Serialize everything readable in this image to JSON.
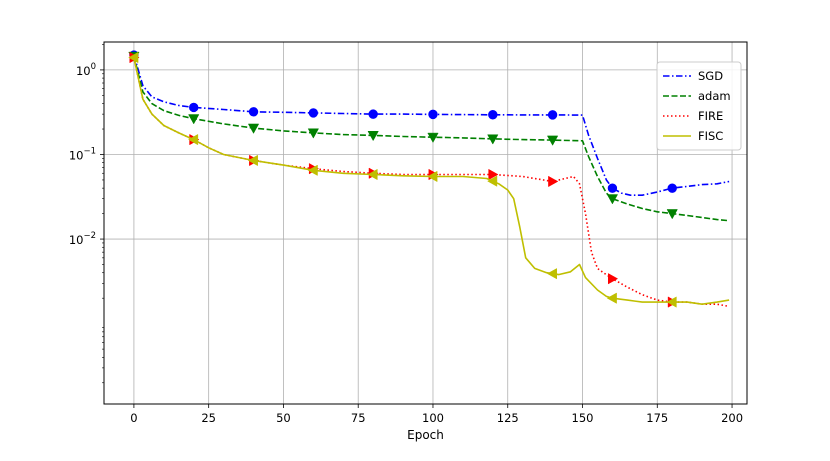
{
  "chart_data": {
    "type": "line",
    "xlabel": "Epoch",
    "ylabel": "",
    "title": "",
    "xlim": [
      -10,
      205
    ],
    "ylim_log10": [
      -3.95,
      0.33
    ],
    "yscale": "log",
    "grid": true,
    "legend_position": "top-right",
    "x_ticks": [
      0,
      25,
      50,
      75,
      100,
      125,
      150,
      175,
      200
    ],
    "y_ticks": [
      {
        "value": 1,
        "mantissa": "10",
        "exponent": "0"
      },
      {
        "value": 0.1,
        "mantissa": "10",
        "exponent": "−1"
      },
      {
        "value": 0.01,
        "mantissa": "10",
        "exponent": "−2"
      }
    ],
    "marker_every": 20,
    "series": [
      {
        "name": "SGD",
        "color": "#0000ff",
        "dash": "dashdot",
        "marker": "circle",
        "points": [
          [
            0,
            1.5
          ],
          [
            3,
            0.65
          ],
          [
            6,
            0.48
          ],
          [
            10,
            0.42
          ],
          [
            15,
            0.38
          ],
          [
            20,
            0.36
          ],
          [
            30,
            0.34
          ],
          [
            40,
            0.32
          ],
          [
            50,
            0.315
          ],
          [
            60,
            0.31
          ],
          [
            70,
            0.305
          ],
          [
            80,
            0.3
          ],
          [
            90,
            0.3
          ],
          [
            100,
            0.298
          ],
          [
            110,
            0.296
          ],
          [
            120,
            0.295
          ],
          [
            130,
            0.294
          ],
          [
            140,
            0.294
          ],
          [
            150,
            0.292
          ],
          [
            152,
            0.17
          ],
          [
            155,
            0.09
          ],
          [
            158,
            0.05
          ],
          [
            160,
            0.04
          ],
          [
            163,
            0.035
          ],
          [
            166,
            0.033
          ],
          [
            170,
            0.033
          ],
          [
            175,
            0.036
          ],
          [
            180,
            0.04
          ],
          [
            185,
            0.042
          ],
          [
            190,
            0.044
          ],
          [
            195,
            0.045
          ],
          [
            199,
            0.048
          ]
        ]
      },
      {
        "name": "adam",
        "color": "#008000",
        "dash": "dashed",
        "marker": "triangle-down",
        "points": [
          [
            0,
            1.45
          ],
          [
            3,
            0.55
          ],
          [
            6,
            0.4
          ],
          [
            10,
            0.33
          ],
          [
            15,
            0.29
          ],
          [
            20,
            0.265
          ],
          [
            30,
            0.23
          ],
          [
            40,
            0.205
          ],
          [
            50,
            0.19
          ],
          [
            60,
            0.18
          ],
          [
            70,
            0.172
          ],
          [
            80,
            0.168
          ],
          [
            90,
            0.163
          ],
          [
            100,
            0.16
          ],
          [
            110,
            0.157
          ],
          [
            120,
            0.153
          ],
          [
            130,
            0.15
          ],
          [
            140,
            0.148
          ],
          [
            150,
            0.145
          ],
          [
            152,
            0.095
          ],
          [
            155,
            0.055
          ],
          [
            158,
            0.035
          ],
          [
            160,
            0.03
          ],
          [
            165,
            0.026
          ],
          [
            170,
            0.023
          ],
          [
            175,
            0.021
          ],
          [
            180,
            0.02
          ],
          [
            185,
            0.019
          ],
          [
            190,
            0.018
          ],
          [
            195,
            0.017
          ],
          [
            199,
            0.0165
          ]
        ]
      },
      {
        "name": "FIRE",
        "color": "#ff0000",
        "dash": "dotted",
        "marker": "triangle-right",
        "points": [
          [
            0,
            1.4
          ],
          [
            3,
            0.45
          ],
          [
            6,
            0.3
          ],
          [
            10,
            0.22
          ],
          [
            15,
            0.18
          ],
          [
            20,
            0.15
          ],
          [
            25,
            0.12
          ],
          [
            30,
            0.1
          ],
          [
            40,
            0.085
          ],
          [
            50,
            0.075
          ],
          [
            60,
            0.068
          ],
          [
            70,
            0.063
          ],
          [
            80,
            0.06
          ],
          [
            90,
            0.058
          ],
          [
            100,
            0.058
          ],
          [
            110,
            0.058
          ],
          [
            120,
            0.058
          ],
          [
            130,
            0.055
          ],
          [
            140,
            0.048
          ],
          [
            147,
            0.055
          ],
          [
            149,
            0.045
          ],
          [
            151,
            0.02
          ],
          [
            153,
            0.007
          ],
          [
            155,
            0.0045
          ],
          [
            157,
            0.004
          ],
          [
            160,
            0.0034
          ],
          [
            165,
            0.0027
          ],
          [
            170,
            0.0022
          ],
          [
            175,
            0.0019
          ],
          [
            180,
            0.0018
          ],
          [
            185,
            0.0018
          ],
          [
            190,
            0.0017
          ],
          [
            195,
            0.0017
          ],
          [
            199,
            0.0016
          ]
        ]
      },
      {
        "name": "FISC",
        "color": "#bfbf00",
        "dash": "solid",
        "marker": "triangle-left",
        "points": [
          [
            0,
            1.4
          ],
          [
            3,
            0.45
          ],
          [
            6,
            0.3
          ],
          [
            10,
            0.22
          ],
          [
            15,
            0.18
          ],
          [
            20,
            0.15
          ],
          [
            25,
            0.12
          ],
          [
            30,
            0.1
          ],
          [
            40,
            0.085
          ],
          [
            50,
            0.075
          ],
          [
            60,
            0.065
          ],
          [
            70,
            0.06
          ],
          [
            80,
            0.058
          ],
          [
            90,
            0.056
          ],
          [
            100,
            0.055
          ],
          [
            110,
            0.055
          ],
          [
            118,
            0.052
          ],
          [
            122,
            0.045
          ],
          [
            125,
            0.038
          ],
          [
            127,
            0.03
          ],
          [
            129,
            0.014
          ],
          [
            131,
            0.006
          ],
          [
            134,
            0.0045
          ],
          [
            138,
            0.004
          ],
          [
            142,
            0.0038
          ],
          [
            146,
            0.0041
          ],
          [
            149,
            0.005
          ],
          [
            151,
            0.0035
          ],
          [
            155,
            0.0025
          ],
          [
            158,
            0.0021
          ],
          [
            160,
            0.002
          ],
          [
            165,
            0.0019
          ],
          [
            170,
            0.0018
          ],
          [
            175,
            0.0018
          ],
          [
            180,
            0.0018
          ],
          [
            185,
            0.0018
          ],
          [
            190,
            0.0017
          ],
          [
            195,
            0.0018
          ],
          [
            199,
            0.0019
          ]
        ]
      }
    ]
  }
}
